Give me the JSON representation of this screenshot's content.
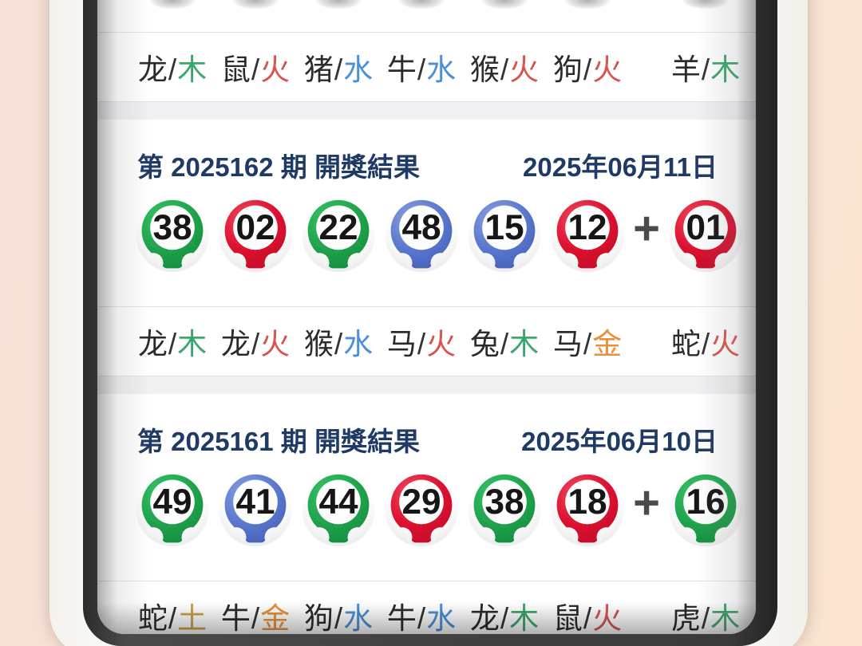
{
  "labels": {
    "slash": "/",
    "plus": "+"
  },
  "colors": {
    "header_text": "#203a66",
    "animal_text": "#2b2b2b",
    "plus_sign": "#4a4a4a",
    "balls": {
      "green": "#1fa24b",
      "red": "#dc1030",
      "blue": "#5570c3"
    },
    "elements": {
      "木": "#3aa76d",
      "火": "#d9534f",
      "水": "#4a90d9",
      "金": "#e8913a",
      "土": "#c9a14e"
    }
  },
  "previous_partial": {
    "zodiac": [
      {
        "animal": "龙",
        "element": "木"
      },
      {
        "animal": "鼠",
        "element": "火"
      },
      {
        "animal": "猪",
        "element": "水"
      },
      {
        "animal": "牛",
        "element": "水"
      },
      {
        "animal": "猴",
        "element": "火"
      },
      {
        "animal": "狗",
        "element": "火"
      },
      {
        "animal": "羊",
        "element": "木"
      }
    ]
  },
  "sections": [
    {
      "title": "第 2025162 期 開獎結果",
      "date": "2025年06月11日",
      "balls": [
        {
          "num": "38",
          "color": "green"
        },
        {
          "num": "02",
          "color": "red"
        },
        {
          "num": "22",
          "color": "green"
        },
        {
          "num": "48",
          "color": "blue"
        },
        {
          "num": "15",
          "color": "blue"
        },
        {
          "num": "12",
          "color": "red"
        }
      ],
      "bonus": {
        "num": "01",
        "color": "red"
      },
      "zodiac": [
        {
          "animal": "龙",
          "element": "木"
        },
        {
          "animal": "龙",
          "element": "火"
        },
        {
          "animal": "猴",
          "element": "水"
        },
        {
          "animal": "马",
          "element": "火"
        },
        {
          "animal": "兔",
          "element": "木"
        },
        {
          "animal": "马",
          "element": "金"
        },
        {
          "animal": "蛇",
          "element": "火"
        }
      ]
    },
    {
      "title": "第 2025161 期 開獎結果",
      "date": "2025年06月10日",
      "balls": [
        {
          "num": "49",
          "color": "green"
        },
        {
          "num": "41",
          "color": "blue"
        },
        {
          "num": "44",
          "color": "green"
        },
        {
          "num": "29",
          "color": "red"
        },
        {
          "num": "38",
          "color": "green"
        },
        {
          "num": "18",
          "color": "red"
        }
      ],
      "bonus": {
        "num": "16",
        "color": "green"
      },
      "zodiac": [
        {
          "animal": "蛇",
          "element": "土"
        },
        {
          "animal": "牛",
          "element": "金"
        },
        {
          "animal": "狗",
          "element": "水"
        },
        {
          "animal": "牛",
          "element": "水"
        },
        {
          "animal": "龙",
          "element": "木"
        },
        {
          "animal": "鼠",
          "element": "火"
        },
        {
          "animal": "虎",
          "element": "木"
        }
      ]
    }
  ]
}
